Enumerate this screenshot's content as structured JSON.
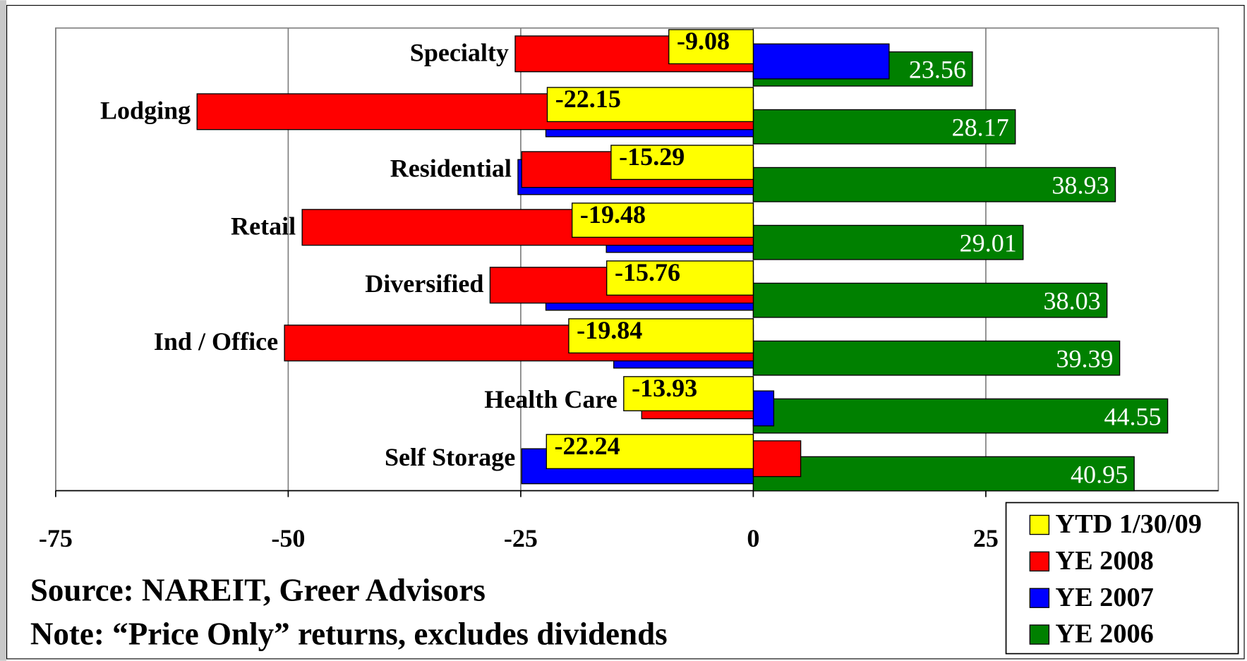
{
  "chart_data": {
    "type": "bar",
    "orientation": "horizontal",
    "categories": [
      "Specialty",
      "Lodging",
      "Residential",
      "Retail",
      "Diversified",
      "Ind / Office",
      "Health Care",
      "Self Storage"
    ],
    "series": [
      {
        "name": "YTD 1/30/09",
        "color": "#ffff00",
        "values": [
          -9.08,
          -22.15,
          -15.29,
          -19.48,
          -15.76,
          -19.84,
          -13.93,
          -22.24
        ],
        "labels": "bold"
      },
      {
        "name": "YE 2008",
        "color": "#ff0000",
        "values": [
          -25.6,
          -59.8,
          -24.9,
          -48.5,
          -28.3,
          -50.4,
          -12.0,
          5.1
        ]
      },
      {
        "name": "YE 2007",
        "color": "#0000ff",
        "values": [
          14.6,
          -22.3,
          -25.3,
          -15.8,
          -22.3,
          -15.0,
          2.2,
          -24.9
        ]
      },
      {
        "name": "YE 2006",
        "color": "#008000",
        "values": [
          23.56,
          28.17,
          38.93,
          29.01,
          38.03,
          39.39,
          44.55,
          40.95
        ],
        "labels": "white"
      }
    ],
    "xlim": [
      -75,
      50
    ],
    "xticks": [
      -75,
      -50,
      -25,
      0,
      25
    ],
    "grid": true,
    "legend": "lower right",
    "notes": [
      "Source: NAREIT, Greer Advisors",
      "Note: “Price Only” returns, excludes dividends"
    ]
  }
}
